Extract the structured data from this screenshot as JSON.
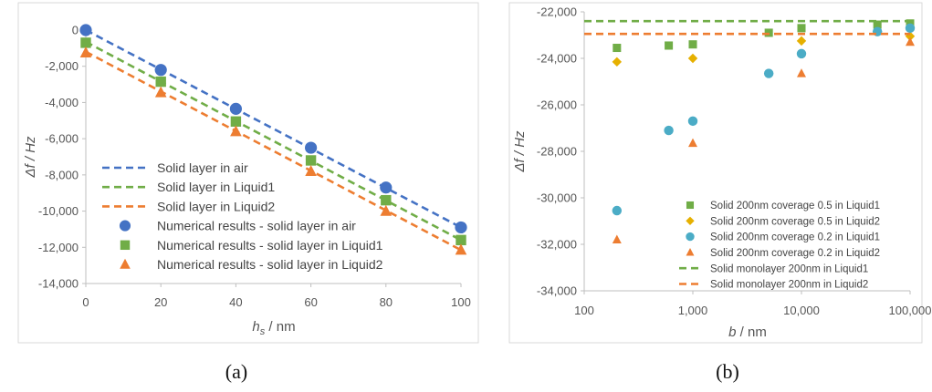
{
  "panel_labels": {
    "a": "(a)",
    "b": "(b)"
  },
  "colors": {
    "blue": "#4472C4",
    "green": "#70AD47",
    "orange": "#ED7D31",
    "gold": "#E6B000",
    "teal": "#4BACC6",
    "axis": "#BFBFBF",
    "text": "#555555"
  },
  "chart_data": [
    {
      "type": "line",
      "panel": "a",
      "xlabel_italic": "h",
      "xlabel_sub": "s",
      "xlabel_rest": " / nm",
      "ylabel": "Δf / Hz",
      "xlim": [
        0,
        100
      ],
      "ylim": [
        -14000,
        0
      ],
      "x_ticks": [
        0,
        20,
        40,
        60,
        80,
        100
      ],
      "x_tick_labels": [
        "0",
        "20",
        "40",
        "60",
        "80",
        "100"
      ],
      "y_ticks": [
        0,
        -2000,
        -4000,
        -6000,
        -8000,
        -10000,
        -12000,
        -14000
      ],
      "y_tick_labels": [
        "0",
        "-2,000",
        "-4,000",
        "-6,000",
        "-8,000",
        "-10,000",
        "-12,000",
        "-14,000"
      ],
      "grid": false,
      "legend_position": "bottom-left",
      "series": [
        {
          "name": "Solid layer in air",
          "kind": "dashed-line",
          "color": "#4472C4",
          "x": [
            0,
            100
          ],
          "y": [
            0,
            -10900
          ]
        },
        {
          "name": "Solid layer in Liquid1",
          "kind": "dashed-line",
          "color": "#70AD47",
          "x": [
            0,
            100
          ],
          "y": [
            -650,
            -11600
          ]
        },
        {
          "name": "Solid layer in Liquid2",
          "kind": "dashed-line",
          "color": "#ED7D31",
          "x": [
            0,
            100
          ],
          "y": [
            -1200,
            -12150
          ]
        },
        {
          "name": "Numerical results - solid layer in air",
          "kind": "circle",
          "color": "#4472C4",
          "x": [
            0,
            20,
            40,
            60,
            80,
            100
          ],
          "y": [
            0,
            -2200,
            -4350,
            -6500,
            -8700,
            -10900
          ]
        },
        {
          "name": "Numerical results - solid layer in Liquid1",
          "kind": "square",
          "color": "#70AD47",
          "x": [
            0,
            20,
            40,
            60,
            80,
            100
          ],
          "y": [
            -700,
            -2850,
            -5050,
            -7200,
            -9400,
            -11600
          ]
        },
        {
          "name": "Numerical results - solid layer in Liquid2",
          "kind": "triangle",
          "color": "#ED7D31",
          "x": [
            0,
            20,
            40,
            60,
            80,
            100
          ],
          "y": [
            -1250,
            -3450,
            -5600,
            -7800,
            -10000,
            -12150
          ]
        }
      ]
    },
    {
      "type": "scatter",
      "panel": "b",
      "xlabel_italic": "b",
      "xlabel_rest": " / nm",
      "ylabel": "Δf / Hz",
      "x_scale": "log",
      "xlim": [
        100,
        100000
      ],
      "ylim": [
        -34000,
        -22000
      ],
      "x_ticks": [
        100,
        1000,
        10000,
        100000
      ],
      "x_tick_labels": [
        "100",
        "1,000",
        "10,000",
        "100,000"
      ],
      "y_ticks": [
        -22000,
        -24000,
        -26000,
        -28000,
        -30000,
        -32000,
        -34000
      ],
      "y_tick_labels": [
        "-22,000",
        "-24,000",
        "-26,000",
        "-28,000",
        "-30,000",
        "-32,000",
        "-34,000"
      ],
      "grid": false,
      "legend_position": "bottom-right",
      "series": [
        {
          "name": "Solid 200nm coverage 0.5 in Liquid1",
          "kind": "square",
          "color": "#70AD47",
          "x": [
            200,
            600,
            1000,
            5000,
            10000,
            50000,
            100000
          ],
          "y": [
            -23550,
            -23450,
            -23400,
            -22900,
            -22700,
            -22550,
            -22500
          ]
        },
        {
          "name": "Solid 200nm coverage 0.5 in Liquid2",
          "kind": "diamond",
          "color": "#E6B000",
          "x": [
            200,
            1000,
            10000,
            100000
          ],
          "y": [
            -24150,
            -24000,
            -23250,
            -23050
          ]
        },
        {
          "name": "Solid 200nm coverage 0.2 in Liquid1",
          "kind": "circle",
          "color": "#4BACC6",
          "x": [
            200,
            600,
            1000,
            5000,
            10000,
            50000,
            100000
          ],
          "y": [
            -30550,
            -27100,
            -26700,
            -24650,
            -23800,
            -22850,
            -22700
          ]
        },
        {
          "name": "Solid 200nm coverage 0.2 in Liquid2",
          "kind": "triangle",
          "color": "#ED7D31",
          "x": [
            200,
            1000,
            10000,
            100000
          ],
          "y": [
            -31800,
            -27650,
            -24650,
            -23300
          ]
        },
        {
          "name": "Solid monolayer 200nm in Liquid1",
          "kind": "dashed-line",
          "color": "#70AD47",
          "x": [
            100,
            100000
          ],
          "y": [
            -22400,
            -22400
          ]
        },
        {
          "name": "Solid monolayer 200nm in Liquid2",
          "kind": "dashed-line",
          "color": "#ED7D31",
          "x": [
            100,
            100000
          ],
          "y": [
            -22950,
            -22950
          ]
        }
      ]
    }
  ]
}
